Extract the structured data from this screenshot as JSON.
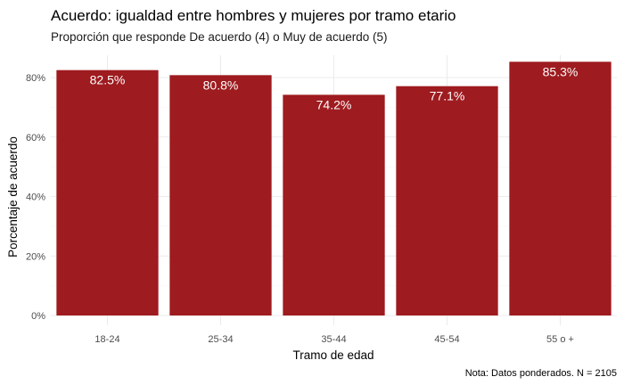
{
  "chart_data": {
    "type": "bar",
    "title": "Acuerdo: igualdad entre hombres y mujeres por tramo etario",
    "subtitle": "Proporción que responde De acuerdo (4) o Muy de acuerdo (5)",
    "xlabel": "Tramo de edad",
    "ylabel": "Porcentaje de acuerdo",
    "caption": "Nota: Datos ponderados. N = 2105",
    "categories": [
      "18-24",
      "25-34",
      "35-44",
      "45-54",
      "55 o +"
    ],
    "values": [
      82.5,
      80.8,
      74.2,
      77.1,
      85.3
    ],
    "value_labels": [
      "82.5%",
      "80.8%",
      "74.2%",
      "77.1%",
      "85.3%"
    ],
    "ylim": [
      0,
      90
    ],
    "yticks": [
      0,
      20,
      40,
      60,
      80
    ],
    "ytick_labels": [
      "0%",
      "20%",
      "40%",
      "60%",
      "80%"
    ],
    "grid": true,
    "legend": "none",
    "bar_color": "#9e1b1f"
  }
}
